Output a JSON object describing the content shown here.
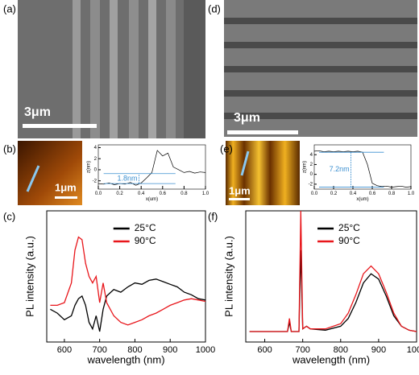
{
  "images": [
    {
      "panel_label": "(a)",
      "scale_bar": "3μm"
    },
    {
      "panel_label": "(d)",
      "scale_bar": "3μm"
    },
    {
      "scale_bar": "1μm"
    },
    {
      "scale_bar": "1μm"
    }
  ],
  "chart_data": [
    {
      "type": "line",
      "panel_label": "(b)",
      "x_label": "x(um)",
      "y_label": "z(nm)",
      "annotation": "1.8nm",
      "xlim": [
        0,
        1
      ],
      "xticks": [
        {
          "value": 0,
          "label": "0.0"
        },
        0.2,
        0.4,
        0.6,
        0.8,
        {
          "value": 1,
          "label": "1.0"
        }
      ],
      "ylim": [
        -3.5,
        4.5
      ],
      "yticks": [
        -2,
        0,
        2,
        4
      ],
      "ref_lines": [
        -2.5,
        -0.7
      ],
      "x": [
        0,
        0.05,
        0.1,
        0.15,
        0.2,
        0.25,
        0.3,
        0.35,
        0.4,
        0.45,
        0.5,
        0.55,
        0.6,
        0.65,
        0.7,
        0.75,
        0.8,
        0.85,
        0.9,
        0.95,
        1
      ],
      "series": [
        {
          "color": "#000000",
          "values": [
            -2.5,
            -2.6,
            -2.4,
            -2.7,
            -2.5,
            -2.6,
            -2.3,
            -2.8,
            -2.4,
            -1.5,
            -0.5,
            3.5,
            2.5,
            3.0,
            0.5,
            0.0,
            -0.5,
            -0.3,
            -0.6,
            -0.4,
            -0.5
          ]
        }
      ]
    },
    {
      "type": "line",
      "panel_label": "(e)",
      "x_label": "x(um)",
      "y_label": "z(nm)",
      "annotation": "7.2nm",
      "xlim": [
        0,
        1
      ],
      "xticks": [
        {
          "value": 0,
          "label": "0.0"
        },
        0.2,
        0.4,
        0.6,
        0.8,
        {
          "value": 1,
          "label": "1.0"
        }
      ],
      "ylim": [
        -3,
        6
      ],
      "yticks": [
        -2,
        0,
        2,
        4
      ],
      "ref_lines": [
        4.5,
        -2.6
      ],
      "x": [
        0,
        0.05,
        0.1,
        0.15,
        0.2,
        0.25,
        0.3,
        0.35,
        0.4,
        0.45,
        0.5,
        0.55,
        0.6,
        0.65,
        0.7,
        0.75,
        0.8,
        0.85,
        0.9,
        0.95,
        1
      ],
      "series": [
        {
          "color": "#000000",
          "values": [
            4.7,
            4.8,
            4.6,
            4.7,
            4.6,
            4.7,
            4.6,
            4.7,
            4.6,
            4.7,
            4.5,
            2.0,
            -1.8,
            -2.3,
            -2.5,
            -2.4,
            -2.6,
            -2.5,
            -2.4,
            -2.6,
            -2.5
          ]
        }
      ]
    },
    {
      "type": "line",
      "panel_label": "(c)",
      "x_label": "wavelength (nm)",
      "y_label": "PL intensity (a.u.)",
      "xlim": [
        550,
        1000
      ],
      "xticks": [
        600,
        700,
        800,
        900,
        1000
      ],
      "ylim": [
        0,
        100
      ],
      "legend": "upper center",
      "x": [
        560,
        580,
        600,
        620,
        630,
        640,
        650,
        660,
        670,
        680,
        690,
        700,
        710,
        720,
        740,
        760,
        780,
        800,
        820,
        840,
        860,
        880,
        900,
        920,
        940,
        960,
        980,
        1000
      ],
      "series": [
        {
          "name": "25°C",
          "color": "#000000",
          "values": [
            25,
            22,
            17,
            20,
            28,
            33,
            35,
            28,
            15,
            10,
            20,
            8,
            25,
            35,
            40,
            38,
            42,
            45,
            44,
            47,
            48,
            46,
            44,
            42,
            38,
            36,
            33,
            32
          ]
        },
        {
          "name": "90°C",
          "color": "#e8161b",
          "values": [
            28,
            28,
            30,
            45,
            70,
            80,
            78,
            60,
            50,
            45,
            50,
            30,
            45,
            30,
            20,
            15,
            13,
            15,
            17,
            20,
            22,
            25,
            28,
            30,
            32,
            33,
            32,
            31
          ]
        }
      ]
    },
    {
      "type": "line",
      "panel_label": "(f)",
      "x_label": "wavelength (nm)",
      "y_label": "PL intensity (a.u.)",
      "xlim": [
        550,
        1000
      ],
      "xticks": [
        600,
        700,
        800,
        900,
        1000
      ],
      "ylim": [
        0,
        100
      ],
      "legend": "upper center",
      "x": [
        560,
        600,
        640,
        660,
        665,
        670,
        690,
        695,
        700,
        710,
        720,
        760,
        800,
        820,
        840,
        860,
        880,
        900,
        920,
        940,
        960,
        980,
        1000
      ],
      "series": [
        {
          "name": "25°C",
          "color": "#000000",
          "values": [
            8,
            8,
            8,
            8,
            15,
            8,
            8,
            70,
            10,
            12,
            10,
            9,
            12,
            18,
            30,
            45,
            52,
            48,
            35,
            20,
            12,
            9,
            8
          ]
        },
        {
          "name": "90°C",
          "color": "#e8161b",
          "values": [
            8,
            8,
            8,
            8,
            18,
            8,
            8,
            100,
            10,
            12,
            10,
            10,
            14,
            22,
            36,
            52,
            58,
            52,
            38,
            22,
            12,
            9,
            8
          ]
        }
      ]
    }
  ]
}
